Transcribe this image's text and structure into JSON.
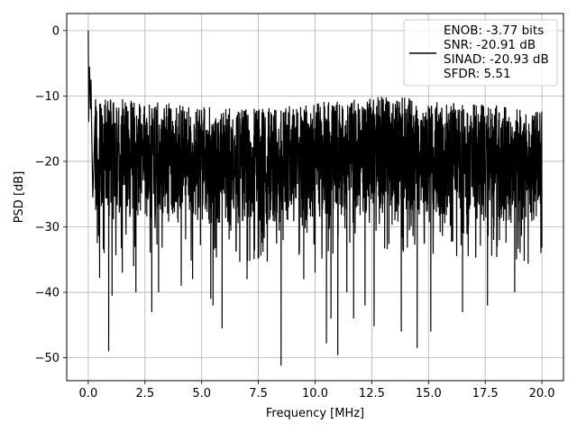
{
  "chart_data": {
    "type": "line",
    "title": "",
    "xlabel": "Frequency [MHz]",
    "ylabel": "PSD [dB]",
    "xlim": [
      -0.95,
      20.95
    ],
    "ylim": [
      -53.5,
      2.6
    ],
    "xticks": [
      0.0,
      2.5,
      5.0,
      7.5,
      10.0,
      12.5,
      15.0,
      17.5,
      20.0
    ],
    "xtick_labels": [
      "0.0",
      "2.5",
      "5.0",
      "7.5",
      "10.0",
      "12.5",
      "15.0",
      "17.5",
      "20.0"
    ],
    "yticks": [
      0,
      -10,
      -20,
      -30,
      -40,
      -50
    ],
    "ytick_labels": [
      "0",
      "−10",
      "−20",
      "−30",
      "−40",
      "−50"
    ],
    "grid": true,
    "legend_position": "top-right",
    "legend_entries": [
      "ENOB: -3.77 bits",
      "SNR: -20.91 dB",
      "SINAD: -20.93 dB",
      "SFDR: 5.51"
    ],
    "line_color": "#000000",
    "grid_color": "#b0b0b0",
    "series": [
      {
        "x_start": 0.0,
        "x_end": 20.0,
        "band_top": [
          -10,
          -12,
          -10,
          -12
        ],
        "band_bottom": [
          -28,
          -30,
          -28,
          -30
        ],
        "peak": {
          "x": 0.0,
          "y": 0.0
        },
        "near_dc": [
          [
            0.02,
            -14
          ],
          [
            0.05,
            -5.5
          ],
          [
            0.08,
            -9
          ],
          [
            0.1,
            -12
          ],
          [
            0.12,
            -7.5
          ],
          [
            0.15,
            -15
          ],
          [
            0.2,
            -25.5
          ],
          [
            0.25,
            -20
          ],
          [
            0.3,
            -13
          ]
        ],
        "dips": [
          [
            0.4,
            -32.5
          ],
          [
            0.5,
            -37.8
          ],
          [
            0.7,
            -34
          ],
          [
            0.9,
            -49
          ],
          [
            1.05,
            -40.5
          ],
          [
            1.5,
            -37
          ],
          [
            2.0,
            -36
          ],
          [
            2.1,
            -40
          ],
          [
            2.8,
            -43
          ],
          [
            3.1,
            -40
          ],
          [
            4.1,
            -39
          ],
          [
            4.6,
            -38
          ],
          [
            5.4,
            -41
          ],
          [
            5.5,
            -42
          ],
          [
            5.9,
            -45.5
          ],
          [
            7.0,
            -38
          ],
          [
            8.5,
            -51.2
          ],
          [
            9.5,
            -38
          ],
          [
            10.0,
            -37
          ],
          [
            10.5,
            -47.8
          ],
          [
            10.7,
            -44
          ],
          [
            11.0,
            -49.6
          ],
          [
            11.4,
            -40
          ],
          [
            11.7,
            -44
          ],
          [
            12.2,
            -42
          ],
          [
            12.6,
            -45.2
          ],
          [
            13.8,
            -46
          ],
          [
            14.5,
            -48.5
          ],
          [
            15.1,
            -46
          ],
          [
            16.5,
            -43
          ],
          [
            17.6,
            -42
          ],
          [
            18.8,
            -40
          ]
        ]
      }
    ]
  }
}
